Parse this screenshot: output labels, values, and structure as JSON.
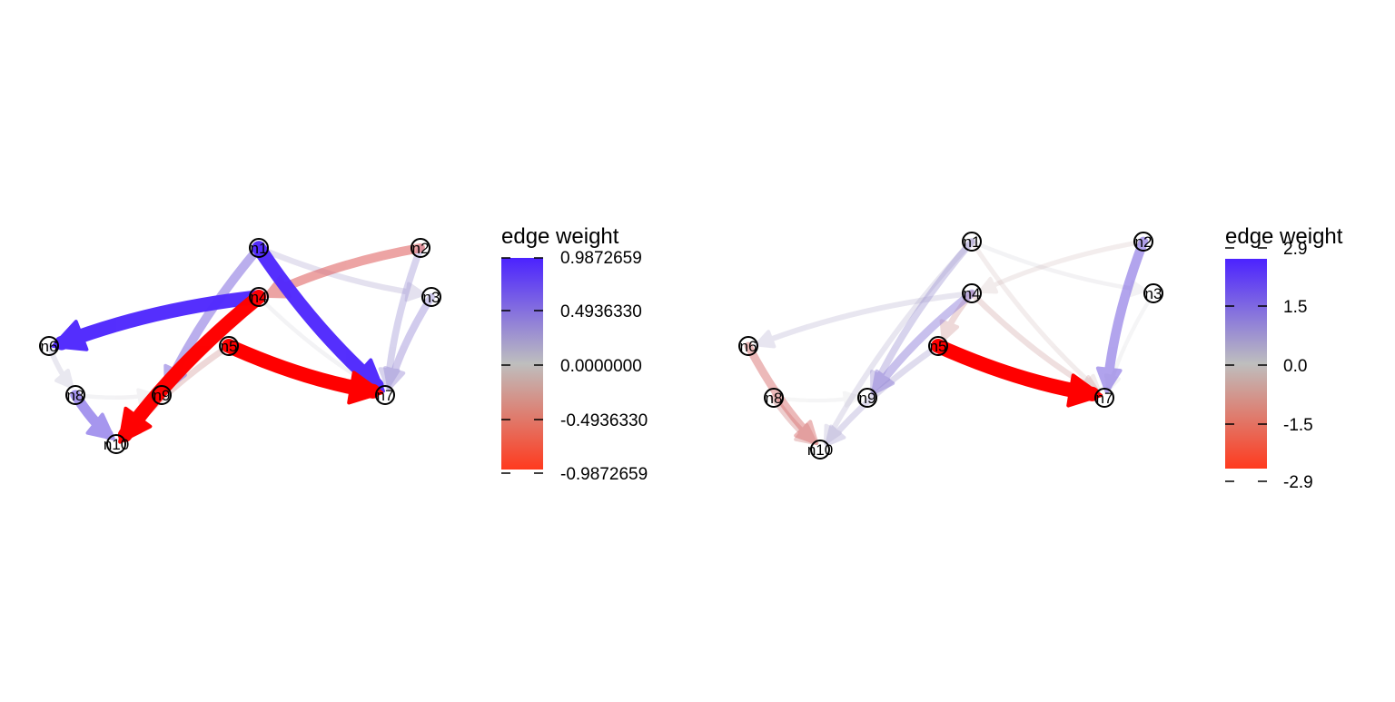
{
  "colors": {
    "positive": "#4b22ff",
    "neutral": "#bebebe",
    "negative": "#ff0000",
    "background": "#ffffff"
  },
  "panels": [
    {
      "legend": {
        "title": "edge weight",
        "ticks": [
          "0.9872659",
          "0.4936330",
          "0.0000000",
          "-0.4936330",
          "-0.9872659"
        ]
      },
      "nodes": [
        "n1",
        "n2",
        "n3",
        "n4",
        "n5",
        "n6",
        "n7",
        "n8",
        "n9",
        "n10"
      ],
      "edges": [
        {
          "from": "n5",
          "to": "n7",
          "weight": -0.99
        },
        {
          "from": "n4",
          "to": "n10",
          "weight": -0.98
        },
        {
          "from": "n1",
          "to": "n7",
          "weight": 0.95
        },
        {
          "from": "n4",
          "to": "n6",
          "weight": 0.95
        },
        {
          "from": "n1",
          "to": "n9",
          "weight": 0.5
        },
        {
          "from": "n2",
          "to": "n4",
          "weight": -0.5
        },
        {
          "from": "n8",
          "to": "n10",
          "weight": 0.6
        },
        {
          "from": "n3",
          "to": "n7",
          "weight": 0.35
        },
        {
          "from": "n2",
          "to": "n7",
          "weight": 0.3
        },
        {
          "from": "n1",
          "to": "n3",
          "weight": 0.2
        },
        {
          "from": "n5",
          "to": "n10",
          "weight": -0.25
        },
        {
          "from": "n6",
          "to": "n8",
          "weight": 0.15
        },
        {
          "from": "n8",
          "to": "n9",
          "weight": 0.05
        },
        {
          "from": "n4",
          "to": "n7",
          "weight": 0.05
        }
      ]
    },
    {
      "legend": {
        "title": "edge weight",
        "ticks": [
          "2.9",
          "1.5",
          "0.0",
          "-1.5",
          "-2.9"
        ]
      },
      "nodes": [
        "n1",
        "n2",
        "n3",
        "n4",
        "n5",
        "n6",
        "n7",
        "n8",
        "n9",
        "n10"
      ],
      "edges": [
        {
          "from": "n5",
          "to": "n7",
          "weight": -2.9
        },
        {
          "from": "n2",
          "to": "n7",
          "weight": 1.6
        },
        {
          "from": "n4",
          "to": "n9",
          "weight": 1.2
        },
        {
          "from": "n1",
          "to": "n9",
          "weight": 0.9
        },
        {
          "from": "n5",
          "to": "n10",
          "weight": 0.7
        },
        {
          "from": "n6",
          "to": "n10",
          "weight": -1.2
        },
        {
          "from": "n8",
          "to": "n10",
          "weight": -0.9
        },
        {
          "from": "n4",
          "to": "n6",
          "weight": 0.5
        },
        {
          "from": "n4",
          "to": "n7",
          "weight": -0.6
        },
        {
          "from": "n1",
          "to": "n7",
          "weight": -0.3
        },
        {
          "from": "n2",
          "to": "n4",
          "weight": -0.3
        },
        {
          "from": "n4",
          "to": "n5",
          "weight": -0.7
        },
        {
          "from": "n1",
          "to": "n10",
          "weight": 0.5
        },
        {
          "from": "n1",
          "to": "n3",
          "weight": 0.15
        },
        {
          "from": "n3",
          "to": "n7",
          "weight": 0.1
        },
        {
          "from": "n8",
          "to": "n9",
          "weight": 0.05
        }
      ]
    }
  ]
}
